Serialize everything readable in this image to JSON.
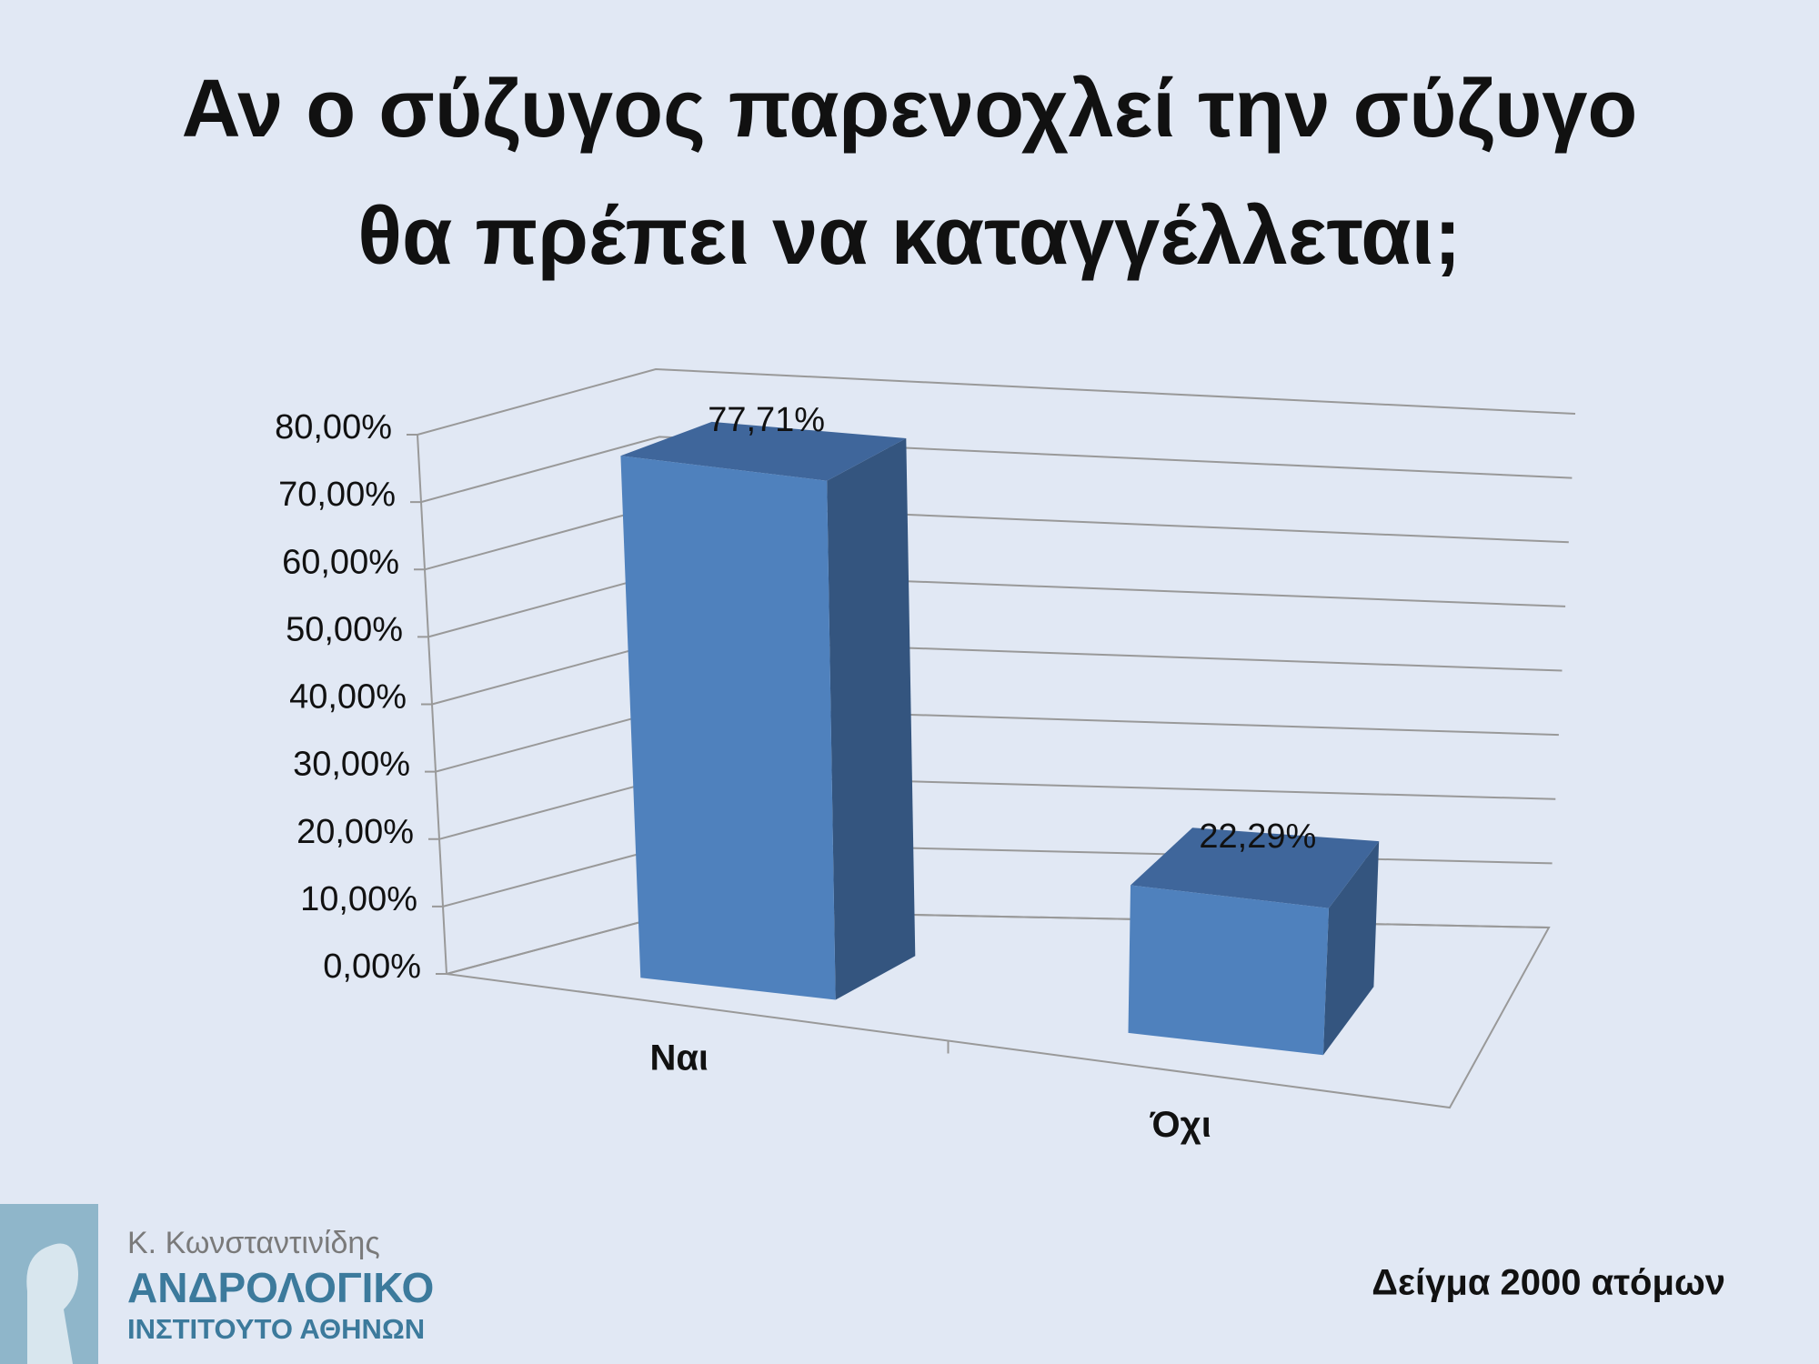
{
  "chart_data": {
    "type": "bar3d",
    "title": "Αν ο σύζυγος παρενοχλεί την σύζυγο θα πρέπει να καταγγέλλεται;",
    "categories": [
      "Ναι",
      "Όχι"
    ],
    "values": [
      77.71,
      22.29
    ],
    "value_labels": [
      "77,71%",
      "22,29%"
    ],
    "color": "#4f81bd",
    "grid": true,
    "ylim": [
      0,
      80
    ],
    "yticks": [
      {
        "value": 0,
        "label": "0,00%"
      },
      {
        "value": 10,
        "label": "10,00%"
      },
      {
        "value": 20,
        "label": "20,00%"
      },
      {
        "value": 30,
        "label": "30,00%"
      },
      {
        "value": 40,
        "label": "40,00%"
      },
      {
        "value": 50,
        "label": "50,00%"
      },
      {
        "value": 60,
        "label": "60,00%"
      },
      {
        "value": 70,
        "label": "70,00%"
      },
      {
        "value": 80,
        "label": "80,00%"
      }
    ],
    "note": "Δείγμα 2000 ατόμων"
  },
  "logo": {
    "author": "Κ. Κωνσταντινίδης",
    "line1": "ΑΝΔΡΟΛΟΓΙΚΟ",
    "line2": "ΙΝΣΤΙΤΟΥΤΟ ΑΘΗΝΩΝ"
  }
}
